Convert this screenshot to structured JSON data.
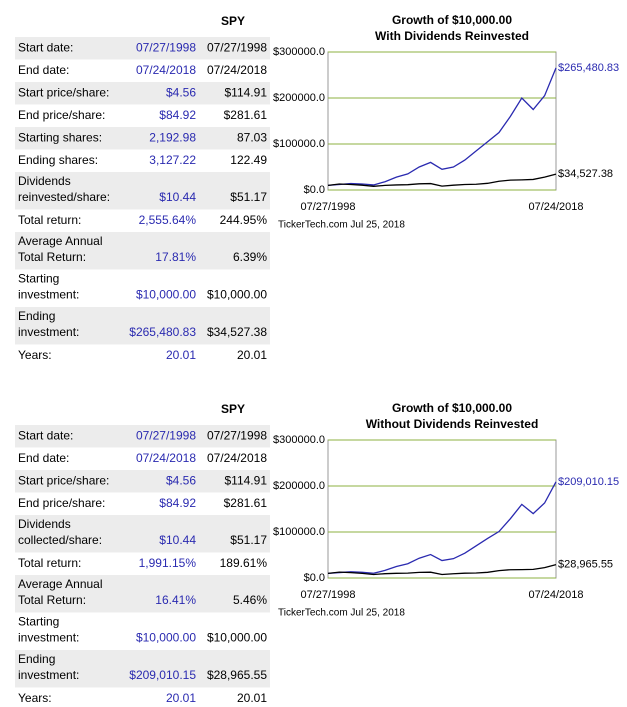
{
  "sections": [
    {
      "table": {
        "header": "SPY",
        "rows": [
          {
            "label": [
              "Start date:"
            ],
            "v1": "07/27/1998",
            "v2": "07/27/1998"
          },
          {
            "label": [
              "End date:"
            ],
            "v1": "07/24/2018",
            "v2": "07/24/2018"
          },
          {
            "label": [
              "Start price/share:"
            ],
            "v1": "$4.56",
            "v2": "$114.91"
          },
          {
            "label": [
              "End price/share:"
            ],
            "v1": "$84.92",
            "v2": "$281.61"
          },
          {
            "label": [
              "Starting shares:"
            ],
            "v1": "2,192.98",
            "v2": "87.03"
          },
          {
            "label": [
              "Ending shares:"
            ],
            "v1": "3,127.22",
            "v2": "122.49"
          },
          {
            "label": [
              "Dividends",
              "reinvested/share:"
            ],
            "v1": "$10.44",
            "v2": "$51.17"
          },
          {
            "label": [
              "Total return:"
            ],
            "v1": "2,555.64%",
            "v2": "244.95%"
          },
          {
            "label": [
              "Average Annual",
              "Total Return:"
            ],
            "v1": "17.81%",
            "v2": "6.39%"
          },
          {
            "label": [
              "Starting",
              "investment:"
            ],
            "v1": "$10,000.00",
            "v2": "$10,000.00"
          },
          {
            "label": [
              "Ending",
              "investment:"
            ],
            "v1": "$265,480.83",
            "v2": "$34,527.38"
          },
          {
            "label": [
              "Years:"
            ],
            "v1": "20.01",
            "v2": "20.01"
          }
        ]
      }
    },
    {
      "table": {
        "header": "SPY",
        "rows": [
          {
            "label": [
              "Start date:"
            ],
            "v1": "07/27/1998",
            "v2": "07/27/1998"
          },
          {
            "label": [
              "End date:"
            ],
            "v1": "07/24/2018",
            "v2": "07/24/2018"
          },
          {
            "label": [
              "Start price/share:"
            ],
            "v1": "$4.56",
            "v2": "$114.91"
          },
          {
            "label": [
              "End price/share:"
            ],
            "v1": "$84.92",
            "v2": "$281.61"
          },
          {
            "label": [
              "Dividends",
              "collected/share:"
            ],
            "v1": "$10.44",
            "v2": "$51.17"
          },
          {
            "label": [
              "Total return:"
            ],
            "v1": "1,991.15%",
            "v2": "189.61%"
          },
          {
            "label": [
              "Average Annual",
              "Total Return:"
            ],
            "v1": "16.41%",
            "v2": "5.46%"
          },
          {
            "label": [
              "Starting",
              "investment:"
            ],
            "v1": "$10,000.00",
            "v2": "$10,000.00"
          },
          {
            "label": [
              "Ending",
              "investment:"
            ],
            "v1": "$209,010.15",
            "v2": "$28,965.55"
          },
          {
            "label": [
              "Years:"
            ],
            "v1": "20.01",
            "v2": "20.01"
          }
        ]
      }
    }
  ],
  "chart_data": [
    {
      "type": "line",
      "title": "Growth of $10,000.00",
      "subtitle": "With Dividends Reinvested",
      "x_labels": [
        "07/27/1998",
        "07/24/2018"
      ],
      "source": "TickerTech.com  Jul 25, 2018",
      "ylim": [
        0,
        300000
      ],
      "yticks": [
        {
          "value": 0,
          "label": "$0.0"
        },
        {
          "value": 100000,
          "label": "$100000.0"
        },
        {
          "value": 200000,
          "label": "$200000.0"
        },
        {
          "value": 300000,
          "label": "$300000.0"
        }
      ],
      "grid": true,
      "grid_color": "#8db040",
      "series": [
        {
          "color": "#2a2ab0",
          "values": [
            10000,
            12000,
            14000,
            13000,
            11000,
            18000,
            28000,
            35000,
            50000,
            60000,
            45000,
            50000,
            65000,
            85000,
            105000,
            125000,
            160000,
            200000,
            175000,
            205000,
            265480.83
          ],
          "end_label": "$265,480.83"
        },
        {
          "color": "#000000",
          "values": [
            10000,
            13000,
            12000,
            10500,
            8000,
            10000,
            11000,
            11500,
            13500,
            14000,
            8500,
            10500,
            12000,
            12500,
            14500,
            19000,
            21500,
            22000,
            23000,
            28000,
            34527.38
          ],
          "end_label": "$34,527.38"
        }
      ]
    },
    {
      "type": "line",
      "title": "Growth of $10,000.00",
      "subtitle": "Without Dividends Reinvested",
      "x_labels": [
        "07/27/1998",
        "07/24/2018"
      ],
      "source": "TickerTech.com  Jul 25, 2018",
      "ylim": [
        0,
        300000
      ],
      "yticks": [
        {
          "value": 0,
          "label": "$0.0"
        },
        {
          "value": 100000,
          "label": "$100000.0"
        },
        {
          "value": 200000,
          "label": "$200000.0"
        },
        {
          "value": 300000,
          "label": "$300000.0"
        }
      ],
      "grid": true,
      "grid_color": "#8db040",
      "series": [
        {
          "color": "#2a2ab0",
          "values": [
            10000,
            11800,
            13500,
            12400,
            10300,
            16500,
            25000,
            31000,
            43000,
            51000,
            38000,
            42000,
            54000,
            70000,
            86000,
            101000,
            129000,
            160000,
            140000,
            163000,
            209010.15
          ],
          "end_label": "$209,010.15"
        },
        {
          "color": "#000000",
          "values": [
            10000,
            12800,
            11700,
            10100,
            7600,
            9400,
            10200,
            10600,
            12300,
            12600,
            7600,
            9300,
            10500,
            10800,
            12400,
            16100,
            18000,
            18200,
            18800,
            22600,
            28965.55
          ],
          "end_label": "$28,965.55"
        }
      ]
    }
  ]
}
